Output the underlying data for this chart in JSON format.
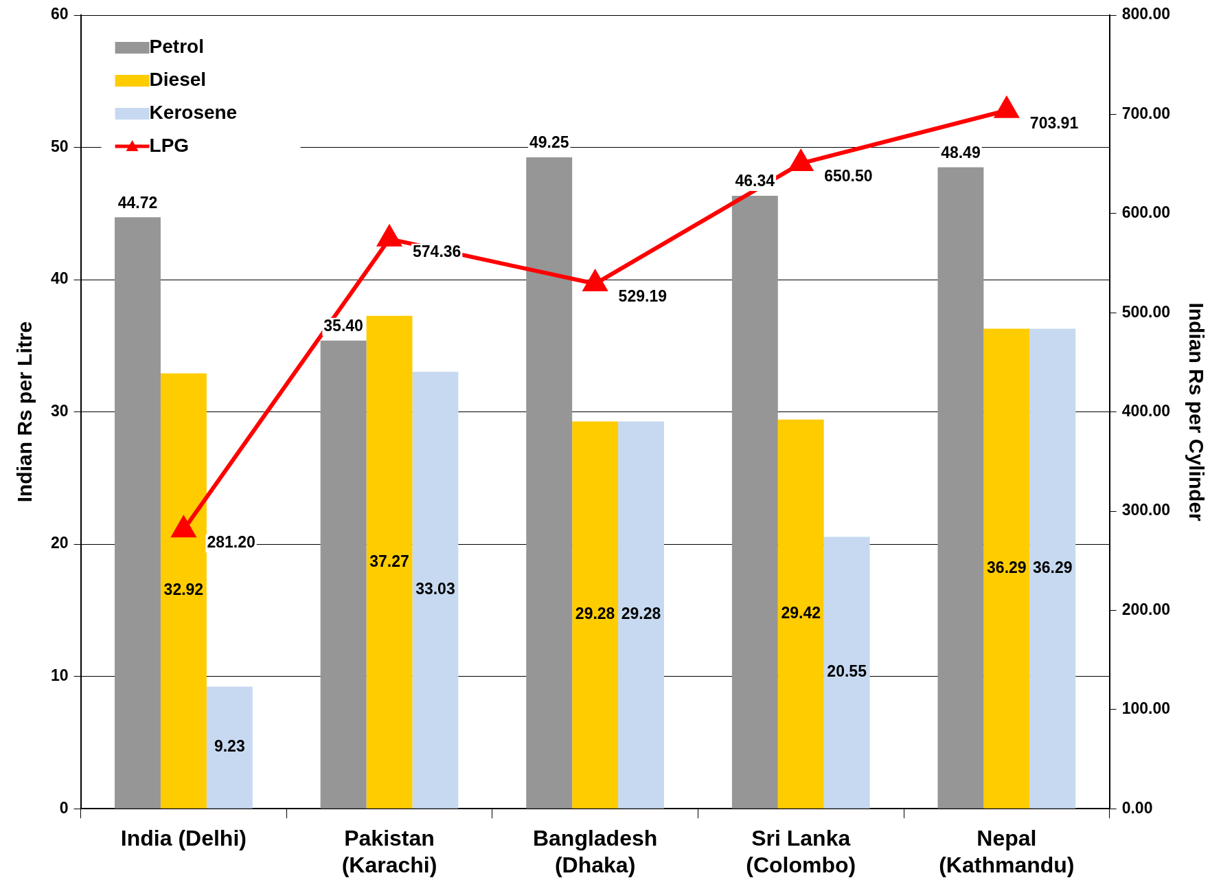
{
  "chart_data": {
    "type": "bar",
    "ylabel": "Indian Rs per Litre",
    "y2label": "Indian Rs per Cylinder",
    "categories": [
      "India (Delhi)",
      "Pakistan (Karachi)",
      "Bangladesh (Dhaka)",
      "Sri Lanka (Colombo)",
      "Nepal (Kathmandu)"
    ],
    "series": [
      {
        "name": "Petrol",
        "color": "#969696",
        "values": [
          44.72,
          35.4,
          49.25,
          46.34,
          48.49
        ],
        "value_labels": [
          "44.72",
          "35.40",
          "49.25",
          "46.34",
          "48.49"
        ]
      },
      {
        "name": "Diesel",
        "color": "#ffcc00",
        "values": [
          32.92,
          37.27,
          29.28,
          29.42,
          36.29
        ]
      },
      {
        "name": "Kerosene",
        "color": "#c6d9f1",
        "values": [
          9.23,
          33.03,
          29.28,
          20.55,
          36.29
        ]
      },
      {
        "name": "LPG",
        "type": "line",
        "axis": "y2",
        "color": "#ff0000",
        "marker": "triangle",
        "values": [
          281.2,
          574.36,
          529.19,
          650.5,
          703.91
        ],
        "value_labels": [
          "281.20",
          "574.36",
          "529.19",
          "650.50",
          "703.91"
        ]
      }
    ],
    "ylim": [
      0,
      60
    ],
    "yticks": [
      0,
      10,
      20,
      30,
      40,
      50,
      60
    ],
    "y2lim": [
      0,
      800
    ],
    "y2ticks": [
      {
        "value": 0,
        "label": "0.00"
      },
      {
        "value": 100,
        "label": "100.00"
      },
      {
        "value": 200,
        "label": "200.00"
      },
      {
        "value": 300,
        "label": "300.00"
      },
      {
        "value": 400,
        "label": "400.00"
      },
      {
        "value": 500,
        "label": "500.00"
      },
      {
        "value": 600,
        "label": "600.00"
      },
      {
        "value": 700,
        "label": "700.00"
      },
      {
        "value": 800,
        "label": "800.00"
      }
    ],
    "grid": "y",
    "legend": "top left",
    "data_labels": true
  }
}
